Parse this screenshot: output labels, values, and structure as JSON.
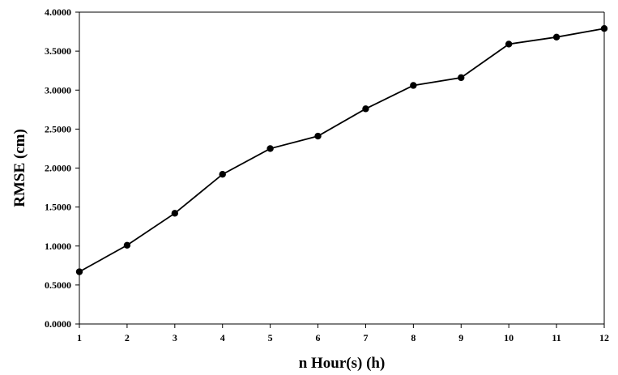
{
  "chart_data": {
    "type": "line",
    "title": "",
    "xlabel": "n Hour(s) (h)",
    "ylabel": "RMSE (cm)",
    "x": [
      1,
      2,
      3,
      4,
      5,
      6,
      7,
      8,
      9,
      10,
      11,
      12
    ],
    "x_tick_labels": [
      "1",
      "2",
      "3",
      "4",
      "5",
      "6",
      "7",
      "8",
      "9",
      "10",
      "11",
      "12"
    ],
    "y_tick_labels": [
      "0.0000",
      "0.5000",
      "1.0000",
      "1.5000",
      "2.0000",
      "2.5000",
      "3.0000",
      "3.5000",
      "4.0000"
    ],
    "xlim": [
      1,
      12
    ],
    "ylim": [
      0,
      4
    ],
    "y_tick_step": 0.5,
    "grid": false,
    "legend": "none",
    "series": [
      {
        "values": [
          0.67,
          1.01,
          1.42,
          1.92,
          2.25,
          2.41,
          2.76,
          3.06,
          3.16,
          3.59,
          3.68,
          3.79
        ],
        "color": "#000000",
        "marker": "circle"
      }
    ]
  }
}
